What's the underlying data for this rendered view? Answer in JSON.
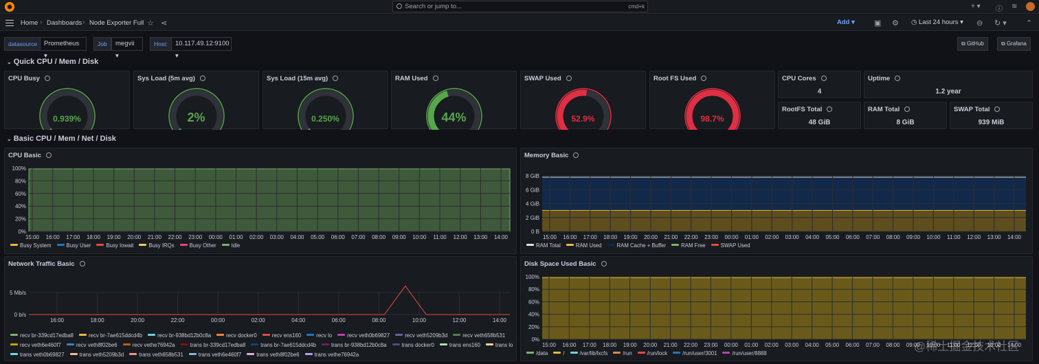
{
  "topbar": {
    "search_placeholder": "Search or jump to...",
    "shortcut": "cmd+k"
  },
  "breadcrumb": {
    "home": "Home",
    "dashboards": "Dashboards",
    "current": "Node Exporter Full"
  },
  "toolbar": {
    "add_label": "Add",
    "time_range": "Last 24 hours"
  },
  "variables": {
    "datasource_label": "datasource",
    "datasource_value": "Prometheus",
    "job_label": "Job",
    "job_value": "megvii",
    "host_label": "Host:",
    "host_value": "10.117.49.12:9100",
    "github_label": "GitHub",
    "grafana_label": "Grafana"
  },
  "rows": {
    "quick": "Quick CPU / Mem / Disk",
    "basic": "Basic CPU / Mem / Net / Disk"
  },
  "gauges": [
    {
      "title": "CPU Busy",
      "value": "0.939%",
      "percent": 0.939,
      "color": "#56a64b"
    },
    {
      "title": "Sys Load (5m avg)",
      "value": "2%",
      "percent": 2,
      "color": "#56a64b"
    },
    {
      "title": "Sys Load (15m avg)",
      "value": "0.250%",
      "percent": 0.25,
      "color": "#56a64b"
    },
    {
      "title": "RAM Used",
      "value": "44%",
      "percent": 44,
      "color": "#56a64b"
    },
    {
      "title": "SWAP Used",
      "value": "52.9%",
      "percent": 52.9,
      "color": "#e02f44"
    },
    {
      "title": "Root FS Used",
      "value": "98.7%",
      "percent": 98.7,
      "color": "#e02f44"
    }
  ],
  "stats": [
    {
      "title": "CPU Cores",
      "value": "4"
    },
    {
      "title": "Uptime",
      "value": "1.2 year"
    },
    {
      "title": "RootFS Total",
      "value": "48 GiB"
    },
    {
      "title": "RAM Total",
      "value": "8 GiB"
    },
    {
      "title": "SWAP Total",
      "value": "939 MiB"
    }
  ],
  "time_ticks": [
    "15:00",
    "16:00",
    "17:00",
    "18:00",
    "19:00",
    "20:00",
    "21:00",
    "22:00",
    "23:00",
    "00:00",
    "01:00",
    "02:00",
    "03:00",
    "04:00",
    "05:00",
    "06:00",
    "07:00",
    "08:00",
    "09:00",
    "10:00",
    "11:00",
    "12:00",
    "13:00",
    "14:00"
  ],
  "net_time_ticks": [
    "16:00",
    "18:00",
    "20:00",
    "22:00",
    "00:00",
    "02:00",
    "04:00",
    "06:00",
    "08:00",
    "10:00",
    "12:00",
    "14:00"
  ],
  "panels": {
    "cpu": {
      "title": "CPU Basic",
      "yticks": [
        "100%",
        "80%",
        "60%",
        "40%",
        "20%",
        "0%"
      ],
      "legend": [
        {
          "name": "Busy System",
          "color": "#eab839"
        },
        {
          "name": "Busy User",
          "color": "#1f78c1"
        },
        {
          "name": "Busy Iowait",
          "color": "#e24d42"
        },
        {
          "name": "Busy IRQs",
          "color": "#f2c96d"
        },
        {
          "name": "Busy Other",
          "color": "#e4437f"
        },
        {
          "name": "Idle",
          "color": "#7eb26d"
        }
      ]
    },
    "mem": {
      "title": "Memory Basic",
      "yticks": [
        "8 GiB",
        "6 GiB",
        "4 GiB",
        "2 GiB",
        "0 B"
      ],
      "legend": [
        {
          "name": "RAM Total",
          "color": "#e0e0e0"
        },
        {
          "name": "RAM Used",
          "color": "#eab839"
        },
        {
          "name": "RAM Cache + Buffer",
          "color": "#052b51"
        },
        {
          "name": "RAM Free",
          "color": "#7eb26d"
        },
        {
          "name": "SWAP Used",
          "color": "#e24d42"
        }
      ]
    },
    "net": {
      "title": "Network Traffic Basic",
      "yticks": [
        "5 Mb/s",
        "0 b/s"
      ],
      "legend_rows": [
        [
          {
            "name": "recv br-339cd17edba8",
            "color": "#7eb26d"
          },
          {
            "name": "recv br-7ae615ddcd4b",
            "color": "#eab839"
          },
          {
            "name": "recv br-938bd12b0c8a",
            "color": "#6ed0e0"
          },
          {
            "name": "recv docker0",
            "color": "#ef843c"
          },
          {
            "name": "recv ens160",
            "color": "#e24d42"
          },
          {
            "name": "recv lo",
            "color": "#1f78c1"
          },
          {
            "name": "recv veth0b69827",
            "color": "#ba43a9"
          },
          {
            "name": "recv veth5209b3d",
            "color": "#705da0"
          },
          {
            "name": "recv veth658b531",
            "color": "#508642"
          }
        ],
        [
          {
            "name": "recv veth6e460f7",
            "color": "#cca300"
          },
          {
            "name": "recv veth8f02be6",
            "color": "#447ebc"
          },
          {
            "name": "recv vethe76942a",
            "color": "#c15c17"
          },
          {
            "name": "trans br-339cd17edba8",
            "color": "#890f02"
          },
          {
            "name": "trans br-7ae615ddcd4b",
            "color": "#0a437c"
          },
          {
            "name": "trans br-938bd12b0c8a",
            "color": "#6d1f62"
          },
          {
            "name": "trans docker0",
            "color": "#584477"
          },
          {
            "name": "trans ens160",
            "color": "#b7dbab"
          },
          {
            "name": "trans lo",
            "color": "#f4d598"
          }
        ],
        [
          {
            "name": "trans veth0b69827",
            "color": "#70dbed"
          },
          {
            "name": "trans veth5209b3d",
            "color": "#f9ba8f"
          },
          {
            "name": "trans veth658b531",
            "color": "#f29191"
          },
          {
            "name": "trans veth6e460f7",
            "color": "#82b5d8"
          },
          {
            "name": "trans veth8f02be6",
            "color": "#e5a8e2"
          },
          {
            "name": "trans vethe76942a",
            "color": "#aea2e0"
          }
        ]
      ]
    },
    "disk": {
      "title": "Disk Space Used Basic",
      "yticks": [
        "100%",
        "80%",
        "60%",
        "40%",
        "20%",
        "0%"
      ],
      "legend": [
        {
          "name": "/data",
          "color": "#7eb26d"
        },
        {
          "name": "/",
          "color": "#eab839"
        },
        {
          "name": "/var/lib/lxcfs",
          "color": "#6ed0e0"
        },
        {
          "name": "/run",
          "color": "#ef843c"
        },
        {
          "name": "/run/lock",
          "color": "#e24d42"
        },
        {
          "name": "/run/user/3001",
          "color": "#1f78c1"
        },
        {
          "name": "/run/user/8888",
          "color": "#ba43a9"
        }
      ]
    }
  },
  "chart_data": [
    {
      "type": "area",
      "title": "CPU Basic",
      "ylim": [
        0,
        100
      ],
      "series": [
        {
          "name": "Idle",
          "values": [
            99,
            99,
            99,
            99,
            99,
            99,
            99,
            99,
            99,
            99,
            99,
            99,
            99,
            99,
            99,
            99,
            99,
            99,
            99,
            99,
            99,
            99,
            99,
            99
          ]
        }
      ]
    },
    {
      "type": "area",
      "title": "Memory Basic",
      "series": [
        {
          "name": "RAM Total",
          "values": [
            8,
            8,
            8,
            8,
            8,
            8,
            8,
            8,
            8,
            8,
            8,
            8,
            8,
            8,
            8,
            8,
            8,
            8,
            8,
            8,
            8,
            8,
            8,
            8
          ]
        },
        {
          "name": "RAM Used",
          "values": [
            3.1,
            3.1,
            3.1,
            3.1,
            3.1,
            3.1,
            3.1,
            3.1,
            3.1,
            3.1,
            3.1,
            3.1,
            3.1,
            3.1,
            3.1,
            3.1,
            3.1,
            3.1,
            3.1,
            3.1,
            3.1,
            3.1,
            3.1,
            3.1
          ]
        }
      ]
    },
    {
      "type": "line",
      "title": "Network Traffic Basic",
      "series": [
        {
          "name": "recv ens160",
          "values": [
            0,
            0,
            0,
            0,
            0,
            0,
            0,
            0,
            0,
            0,
            0,
            0,
            0,
            0,
            0,
            0,
            0,
            0,
            6.5,
            0,
            0,
            0,
            0,
            0
          ]
        }
      ]
    },
    {
      "type": "area",
      "title": "Disk Space Used Basic",
      "ylim": [
        0,
        100
      ],
      "series": [
        {
          "name": "/",
          "values": [
            98.7,
            98.7,
            98.7,
            98.7,
            98.7,
            98.7,
            98.7,
            98.7,
            98.7,
            98.7,
            98.7,
            98.7,
            98.7,
            98.7,
            98.7,
            98.7,
            98.7,
            98.7,
            98.7,
            98.7,
            98.7,
            98.7,
            98.7,
            98.7
          ]
        }
      ]
    }
  ],
  "watermark": "@稀土掘金技术社区"
}
